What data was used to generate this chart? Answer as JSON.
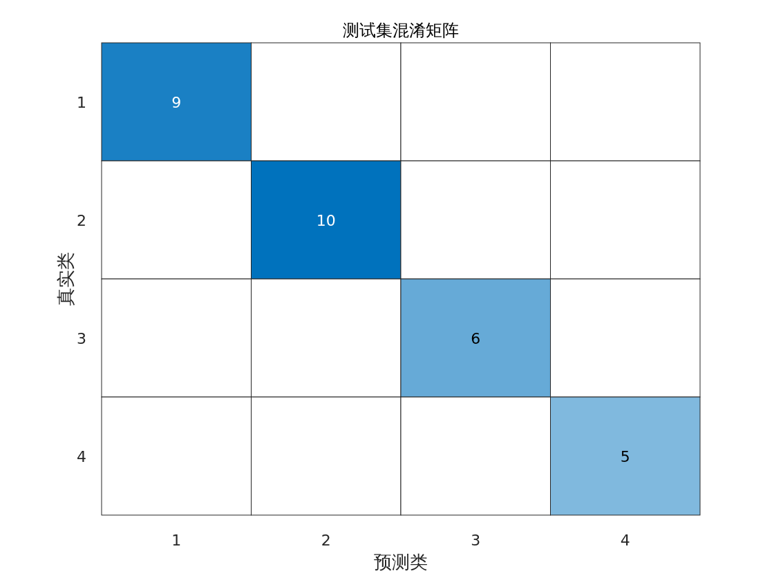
{
  "chart_data": {
    "type": "heatmap",
    "title": "测试集混淆矩阵",
    "xlabel": "预测类",
    "ylabel": "真实类",
    "categories": [
      "1",
      "2",
      "3",
      "4"
    ],
    "y_categories": [
      "1",
      "2",
      "3",
      "4"
    ],
    "cells": [
      [
        9,
        null,
        null,
        null
      ],
      [
        null,
        10,
        null,
        null
      ],
      [
        null,
        null,
        6,
        null
      ],
      [
        null,
        null,
        null,
        5
      ]
    ],
    "color": "#0072bd",
    "data_labels": true
  }
}
